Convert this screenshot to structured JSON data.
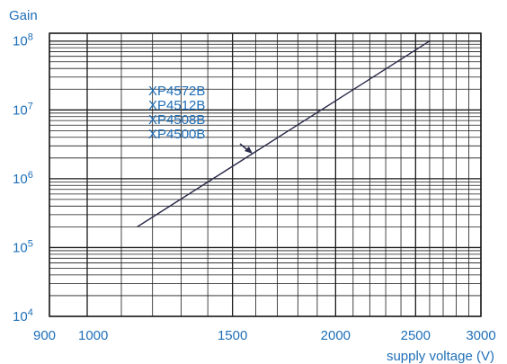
{
  "chart_data": {
    "type": "line",
    "ylabel": "Gain",
    "xlabel": "supply voltage (V)",
    "x_scale": "log",
    "y_scale": "log",
    "xlim": [
      900,
      3000
    ],
    "ylim": [
      10000,
      130000000
    ],
    "x_ticks": [
      {
        "value": 900,
        "label": "900"
      },
      {
        "value": 1000,
        "label": "1000"
      },
      {
        "value": 1500,
        "label": "1500"
      },
      {
        "value": 2000,
        "label": "2000"
      },
      {
        "value": 2500,
        "label": "2500"
      },
      {
        "value": 3000,
        "label": "3000"
      }
    ],
    "y_ticks": [
      {
        "value": 10000,
        "base": "10",
        "exp": "4"
      },
      {
        "value": 100000,
        "base": "10",
        "exp": "5"
      },
      {
        "value": 1000000,
        "base": "10",
        "exp": "6"
      },
      {
        "value": 10000000,
        "base": "10",
        "exp": "7"
      },
      {
        "value": 100000000,
        "base": "10",
        "exp": "8"
      }
    ],
    "grid": true,
    "series": [
      {
        "name": "XP4572B / XP4512B / XP4508B / XP4500B",
        "x": [
          1150,
          2600
        ],
        "y": [
          200000,
          100000000
        ]
      }
    ],
    "series_labels": [
      "XP4572B",
      "XP4512B",
      "XP4508B",
      "XP4500B"
    ],
    "colors": {
      "grid": "#1a1a1a",
      "line": "#2a2a4a",
      "text": "#1f6fb8"
    }
  }
}
